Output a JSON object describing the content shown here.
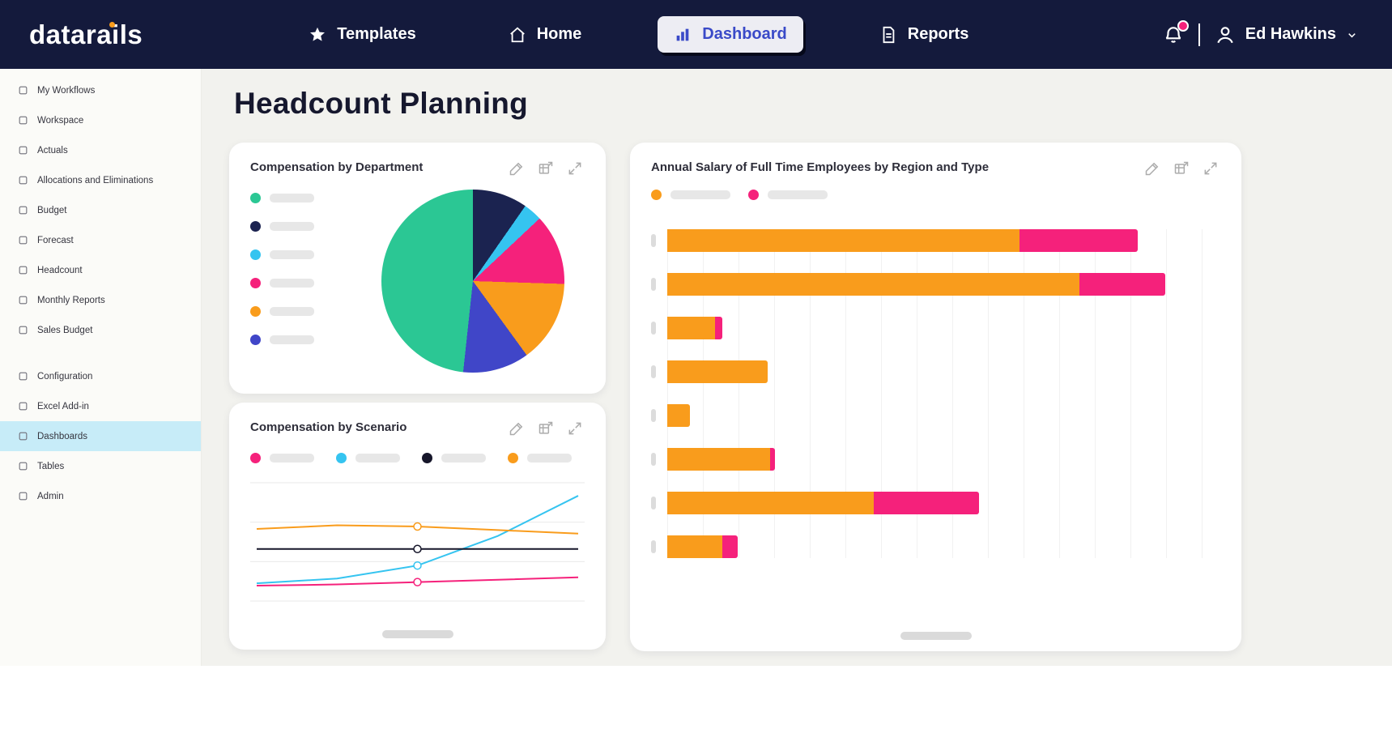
{
  "brand": {
    "logo_text": "datarails"
  },
  "topnav": {
    "items": [
      {
        "label": "Templates",
        "icon": "star",
        "active": false
      },
      {
        "label": "Home",
        "icon": "home",
        "active": false
      },
      {
        "label": "Dashboard",
        "icon": "bar-chart",
        "active": true
      },
      {
        "label": "Reports",
        "icon": "report",
        "active": false
      }
    ],
    "notification": {
      "icon": "bell",
      "has_badge": true
    },
    "user": {
      "icon": "user",
      "name": "Ed Hawkins"
    }
  },
  "sidebar": {
    "groups": [
      {
        "items": [
          {
            "label": "My Workflows"
          },
          {
            "label": "Workspace"
          },
          {
            "label": "Actuals"
          },
          {
            "label": "Allocations and Eliminations"
          },
          {
            "label": "Budget"
          },
          {
            "label": "Forecast"
          },
          {
            "label": "Headcount"
          },
          {
            "label": "Monthly Reports"
          },
          {
            "label": "Sales Budget"
          }
        ]
      },
      {
        "items": [
          {
            "label": "Configuration"
          },
          {
            "label": "Excel Add-in"
          },
          {
            "label": "Dashboards",
            "active": true
          },
          {
            "label": "Tables"
          },
          {
            "label": "Admin"
          }
        ]
      }
    ]
  },
  "page": {
    "title": "Headcount Planning"
  },
  "card_actions": [
    {
      "name": "edit",
      "icon": "edit"
    },
    {
      "name": "export",
      "icon": "export"
    },
    {
      "name": "expand",
      "icon": "expand"
    }
  ],
  "colors": {
    "navy": "#141A3C",
    "orange": "#F99C1C",
    "pink": "#F5217B",
    "green": "#2BC794",
    "cyan": "#35C4F0",
    "indigo": "#4046C8",
    "active_nav_text": "#3A4AC8",
    "sidebar_active_bg": "#C7ECF8",
    "content_bg": "#F2F2EE"
  },
  "chart_data": [
    {
      "type": "pie",
      "title": "Compensation by Department",
      "legend_position": "left",
      "legend_labels_visible": false,
      "slices": [
        {
          "name": "navy",
          "color": "#1B2350",
          "value": 9.7
        },
        {
          "name": "cyan",
          "color": "#35C4F0",
          "value": 3.3
        },
        {
          "name": "pink",
          "color": "#F5217B",
          "value": 12.5
        },
        {
          "name": "orange",
          "color": "#F99C1C",
          "value": 14.5
        },
        {
          "name": "indigo",
          "color": "#4046C8",
          "value": 11.7
        },
        {
          "name": "green",
          "color": "#2BC794",
          "value": 48.3
        }
      ],
      "legend_colors": [
        "#2BC794",
        "#1B2350",
        "#35C4F0",
        "#F5217B",
        "#F99C1C",
        "#4046C8"
      ]
    },
    {
      "type": "line",
      "title": "Compensation by Scenario",
      "legend_labels_visible": false,
      "ymin": 0,
      "ymax": 100,
      "gridline_count": 4,
      "marker_index": 2,
      "series": [
        {
          "name": "pink",
          "color": "#F5217B",
          "values": [
            13,
            14,
            16,
            18,
            20
          ]
        },
        {
          "name": "cyan",
          "color": "#35C4F0",
          "values": [
            15,
            19,
            30,
            55,
            89
          ]
        },
        {
          "name": "black",
          "color": "#16162A",
          "values": [
            44,
            44,
            44,
            44,
            44
          ]
        },
        {
          "name": "orange",
          "color": "#F99C1C",
          "values": [
            61,
            64,
            63,
            60,
            57
          ]
        }
      ]
    },
    {
      "type": "bar-horizontal-stacked",
      "title": "Annual Salary of Full Time Employees by Region and Type",
      "legend_labels_visible": false,
      "categories": [
        "",
        "",
        "",
        "",
        "",
        "",
        "",
        ""
      ],
      "xmax": 110,
      "series": [
        {
          "name": "orange",
          "color": "#F99C1C",
          "values": [
            70,
            82,
            9.5,
            20,
            4.5,
            20.5,
            41,
            11
          ]
        },
        {
          "name": "pink",
          "color": "#F5217B",
          "values": [
            23.5,
            17,
            1.5,
            0,
            0,
            1,
            21,
            3
          ]
        }
      ]
    }
  ]
}
